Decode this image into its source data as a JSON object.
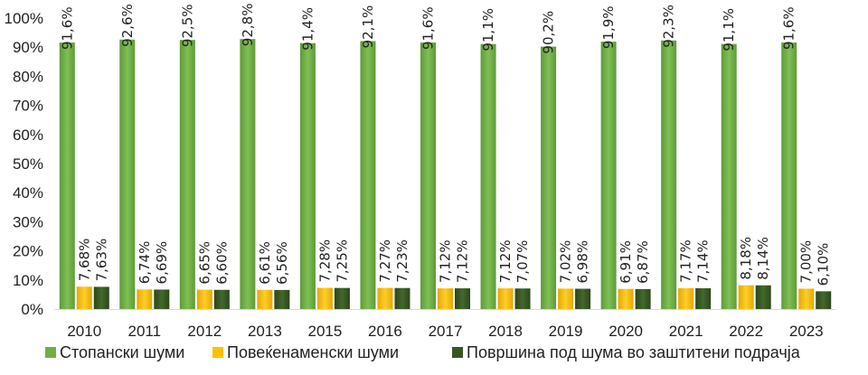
{
  "chart_data": {
    "type": "bar",
    "categories": [
      "2010",
      "2011",
      "2012",
      "2013",
      "2015",
      "2016",
      "2017",
      "2018",
      "2019",
      "2020",
      "2021",
      "2022",
      "2023"
    ],
    "series": [
      {
        "name": "Стопански шуми",
        "color": "#70ad47",
        "values": [
          91.6,
          92.6,
          92.5,
          92.8,
          91.4,
          92.1,
          91.6,
          91.1,
          90.2,
          91.9,
          92.3,
          91.1,
          91.6
        ],
        "labels": [
          "91,6%",
          "92,6%",
          "92,5%",
          "92,8%",
          "91,4%",
          "92,1%",
          "91,6%",
          "91,1%",
          "90,2%",
          "91,9%",
          "92,3%",
          "91,1%",
          "91,6%"
        ]
      },
      {
        "name": "Повеќенаменски шуми",
        "color": "#ffc000",
        "values": [
          7.68,
          6.74,
          6.65,
          6.61,
          7.28,
          7.27,
          7.12,
          7.12,
          7.02,
          6.91,
          7.17,
          8.18,
          7.0
        ],
        "labels": [
          "7,68%",
          "6,74%",
          "6,65%",
          "6,61%",
          "7,28%",
          "7,27%",
          "7,12%",
          "7,12%",
          "7,02%",
          "6,91%",
          "7,17%",
          "8,18%",
          "7,00%"
        ]
      },
      {
        "name": "Површина под шума во заштитени подрачја",
        "color": "#375623",
        "values": [
          7.63,
          6.69,
          6.6,
          6.56,
          7.25,
          7.23,
          7.12,
          7.07,
          6.98,
          6.87,
          7.14,
          8.14,
          6.1
        ],
        "labels": [
          "7,63%",
          "6,69%",
          "6,60%",
          "6,56%",
          "7,25%",
          "7,23%",
          "7,12%",
          "7,07%",
          "6,98%",
          "6,87%",
          "7,14%",
          "8,14%",
          "6,10%"
        ]
      }
    ],
    "yticks": [
      "0%",
      "10%",
      "20%",
      "30%",
      "40%",
      "50%",
      "60%",
      "70%",
      "80%",
      "90%",
      "100%"
    ],
    "ylim": [
      0,
      100
    ],
    "grid": false,
    "legend": "bottom"
  }
}
